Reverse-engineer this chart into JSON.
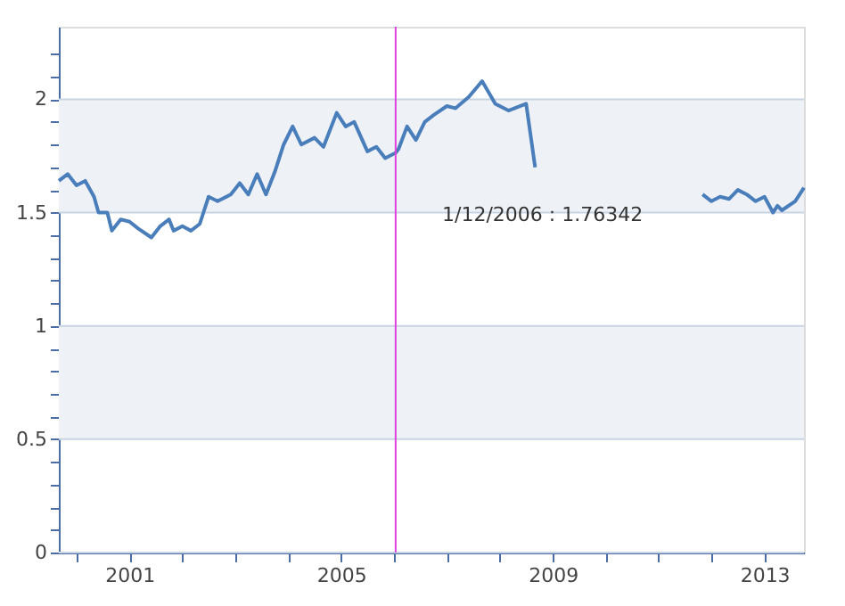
{
  "chart_data": {
    "type": "line",
    "x": [
      "1999-09",
      "1999-11",
      "2000-01",
      "2000-03",
      "2000-05",
      "2000-06",
      "2000-08",
      "2000-09",
      "2000-11",
      "2001-01",
      "2001-03",
      "2001-06",
      "2001-08",
      "2001-10",
      "2001-11",
      "2002-01",
      "2002-03",
      "2002-05",
      "2002-07",
      "2002-09",
      "2002-12",
      "2003-02",
      "2003-04",
      "2003-06",
      "2003-08",
      "2003-10",
      "2003-12",
      "2004-02",
      "2004-04",
      "2004-07",
      "2004-09",
      "2004-12",
      "2005-02",
      "2005-04",
      "2005-07",
      "2005-09",
      "2005-11",
      "2006-01-12",
      "2006-02",
      "2006-04",
      "2006-06",
      "2006-08",
      "2006-10",
      "2007-01",
      "2007-03",
      "2007-06",
      "2007-09",
      "2007-12",
      "2008-03",
      "2008-07",
      "2008-09",
      "2008-11",
      "2011-11",
      "2012-01",
      "2012-03",
      "2012-05",
      "2012-07",
      "2012-09",
      "2012-11",
      "2013-01",
      "2013-03",
      "2013-04",
      "2013-05",
      "2013-08",
      "2013-10"
    ],
    "series": [
      {
        "color": "#4a7ebb",
        "values": [
          1.64,
          1.67,
          1.62,
          1.64,
          1.57,
          1.5,
          1.5,
          1.42,
          1.47,
          1.46,
          1.43,
          1.39,
          1.44,
          1.47,
          1.42,
          1.44,
          1.42,
          1.45,
          1.57,
          1.55,
          1.58,
          1.63,
          1.58,
          1.67,
          1.58,
          1.68,
          1.8,
          1.88,
          1.8,
          1.83,
          1.79,
          1.94,
          1.88,
          1.9,
          1.77,
          1.79,
          1.74,
          1.76342,
          1.78,
          1.88,
          1.82,
          1.9,
          1.93,
          1.97,
          1.96,
          2.01,
          2.08,
          1.98,
          1.95,
          1.98,
          1.7,
          null,
          1.58,
          1.55,
          1.57,
          1.56,
          1.6,
          1.58,
          1.55,
          1.57,
          1.5,
          1.53,
          1.51,
          1.55,
          1.61
        ]
      }
    ],
    "xlim": [
      "1999-09",
      "2013-10"
    ],
    "xticks": [
      {
        "value": "2000",
        "label": null
      },
      {
        "value": "2001",
        "label": "2001"
      },
      {
        "value": "2002",
        "label": null
      },
      {
        "value": "2003",
        "label": null
      },
      {
        "value": "2004",
        "label": null
      },
      {
        "value": "2005",
        "label": "2005"
      },
      {
        "value": "2006",
        "label": null
      },
      {
        "value": "2007",
        "label": null
      },
      {
        "value": "2008",
        "label": null
      },
      {
        "value": "2009",
        "label": "2009"
      },
      {
        "value": "2010",
        "label": null
      },
      {
        "value": "2011",
        "label": null
      },
      {
        "value": "2012",
        "label": null
      },
      {
        "value": "2013",
        "label": "2013"
      }
    ],
    "ylim": [
      0,
      2.32
    ],
    "yticks": [
      0,
      {
        "value": 0.1,
        "label": null
      },
      {
        "value": 0.2,
        "label": null
      },
      {
        "value": 0.3,
        "label": null
      },
      {
        "value": 0.4,
        "label": null
      },
      0.5,
      {
        "value": 0.6,
        "label": null
      },
      {
        "value": 0.7,
        "label": null
      },
      {
        "value": 0.8,
        "label": null
      },
      {
        "value": 0.9,
        "label": null
      },
      1,
      {
        "value": 1.1,
        "label": null
      },
      {
        "value": 1.2,
        "label": null
      },
      {
        "value": 1.3,
        "label": null
      },
      {
        "value": 1.4,
        "label": null
      },
      1.5,
      {
        "value": 1.6,
        "label": null
      },
      {
        "value": 1.7,
        "label": null
      },
      {
        "value": 1.8,
        "label": null
      },
      {
        "value": 1.9,
        "label": null
      },
      2,
      {
        "value": 2.1,
        "label": null
      },
      {
        "value": 2.2,
        "label": null
      }
    ],
    "bands": [
      {
        "axis": "y",
        "from": 0.5,
        "to": 1,
        "color": "#eef2f7"
      },
      {
        "axis": "y",
        "from": 1.5,
        "to": 2,
        "color": "#eef2f7"
      }
    ],
    "ref_lines": [
      {
        "axis": "x",
        "value": "2006-01-12",
        "color": "#e040e0"
      }
    ],
    "annotations": [
      "1/12/2006 : 1.76342"
    ],
    "grid": "y",
    "marker": "none",
    "line_style": "solid"
  }
}
